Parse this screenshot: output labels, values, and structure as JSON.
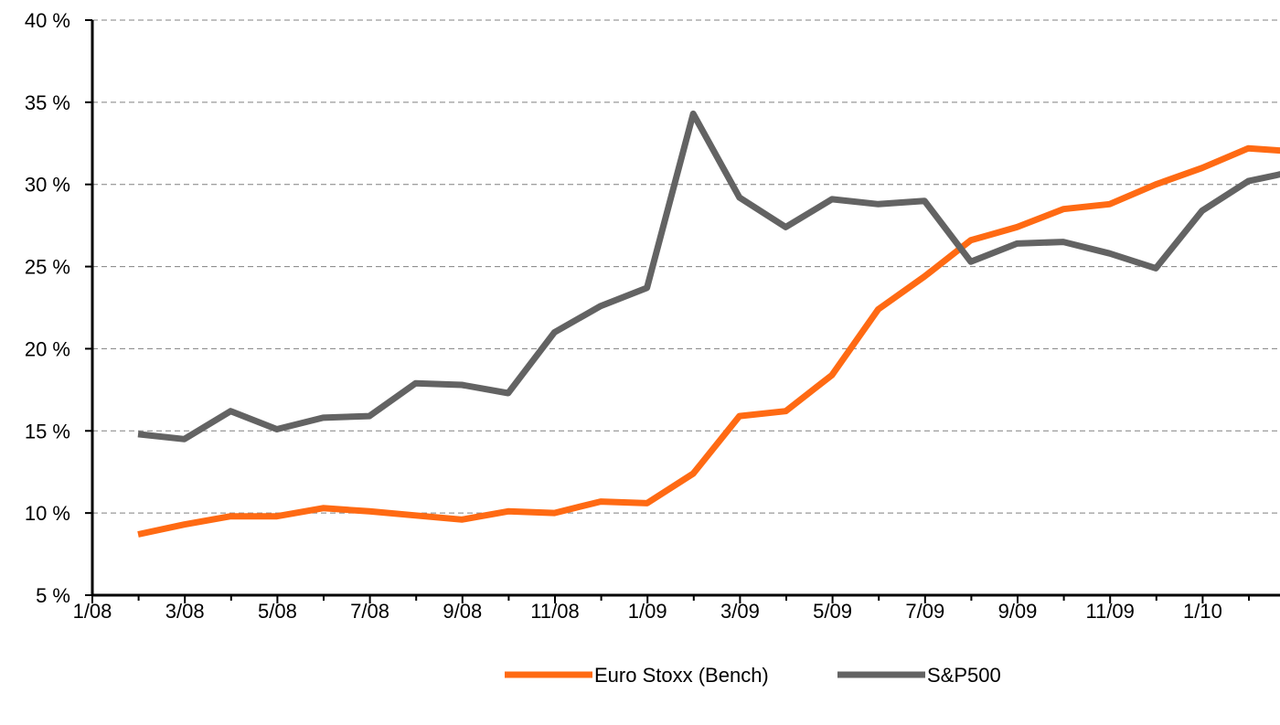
{
  "chart_data": {
    "type": "line",
    "title": "",
    "xlabel": "",
    "ylabel": "",
    "x_labels": [
      "1/08",
      "3/08",
      "5/08",
      "7/08",
      "9/08",
      "11/08",
      "1/09",
      "3/09",
      "5/09",
      "7/09",
      "9/09",
      "11/09",
      "1/10"
    ],
    "x": [
      "2/08",
      "3/08",
      "4/08",
      "5/08",
      "6/08",
      "7/08",
      "8/08",
      "9/08",
      "10/08",
      "11/08",
      "12/08",
      "1/09",
      "2/09",
      "3/09",
      "4/09",
      "5/09",
      "6/09",
      "7/09",
      "8/09",
      "9/09",
      "10/09",
      "11/09",
      "12/09",
      "1/10",
      "2/10",
      "3/10"
    ],
    "y_ticks": [
      "5 %",
      "10 %",
      "15 %",
      "20 %",
      "25 %",
      "30 %",
      "35 %",
      "40 %"
    ],
    "ylim": [
      5,
      40
    ],
    "y_unit": "%",
    "grid": "horizontal dashed",
    "legend_position": "bottom",
    "series": [
      {
        "name": "Euro Stoxx (Bench)",
        "color": "#ff6a13",
        "values": [
          8.7,
          9.3,
          9.8,
          9.8,
          10.3,
          10.1,
          9.85,
          9.6,
          10.1,
          10.0,
          10.7,
          10.6,
          12.4,
          15.9,
          16.2,
          18.4,
          22.4,
          24.4,
          26.6,
          27.4,
          28.5,
          28.8,
          30.0,
          31.0,
          32.2,
          32.0
        ]
      },
      {
        "name": "S&P500",
        "color": "#636363",
        "values": [
          14.8,
          14.5,
          16.2,
          15.1,
          15.8,
          15.9,
          17.9,
          17.8,
          17.3,
          21.0,
          22.6,
          23.7,
          34.3,
          29.2,
          27.4,
          29.1,
          28.8,
          29.0,
          25.3,
          26.4,
          26.5,
          25.8,
          24.9,
          28.4,
          30.2,
          30.8
        ]
      }
    ]
  }
}
